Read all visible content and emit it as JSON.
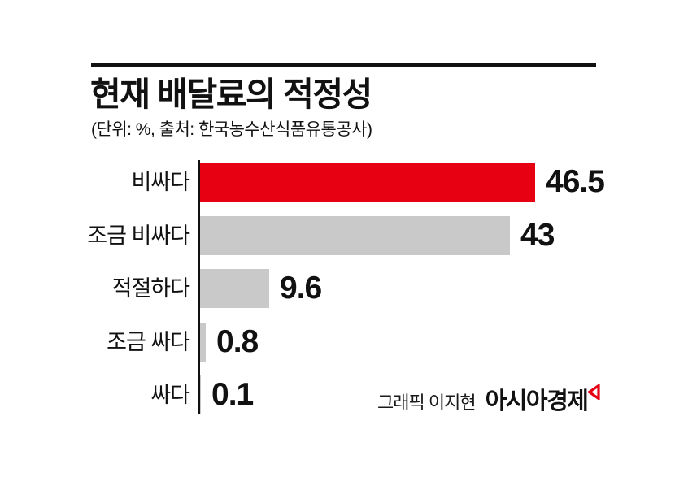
{
  "title": "현재 배달료의 적정성",
  "subtitle": "(단위: %, 출처: 한국농수산식품유통공사)",
  "credit": {
    "prefix": "그래픽 이지현",
    "brand": "아시아경제"
  },
  "colors": {
    "accent_red": "#e60012",
    "bar_gray": "#c9c9c9",
    "text": "#111111",
    "rule": "#111111"
  },
  "chart_data": {
    "type": "bar",
    "orientation": "horizontal",
    "title": "현재 배달료의 적정성",
    "unit": "%",
    "source": "한국농수산식품유통공사",
    "categories": [
      "비싸다",
      "조금 비싸다",
      "적절하다",
      "조금 싸다",
      "싸다"
    ],
    "values": [
      46.5,
      43,
      9.6,
      0.8,
      0.1
    ],
    "value_labels": [
      "46.5",
      "43",
      "9.6",
      "0.8",
      "0.1"
    ],
    "bar_colors": [
      "#e60012",
      "#c9c9c9",
      "#c9c9c9",
      "#c9c9c9",
      "#c9c9c9"
    ],
    "highlight_index": 0,
    "xlim": [
      0,
      50
    ],
    "grid": false,
    "legend": false
  }
}
